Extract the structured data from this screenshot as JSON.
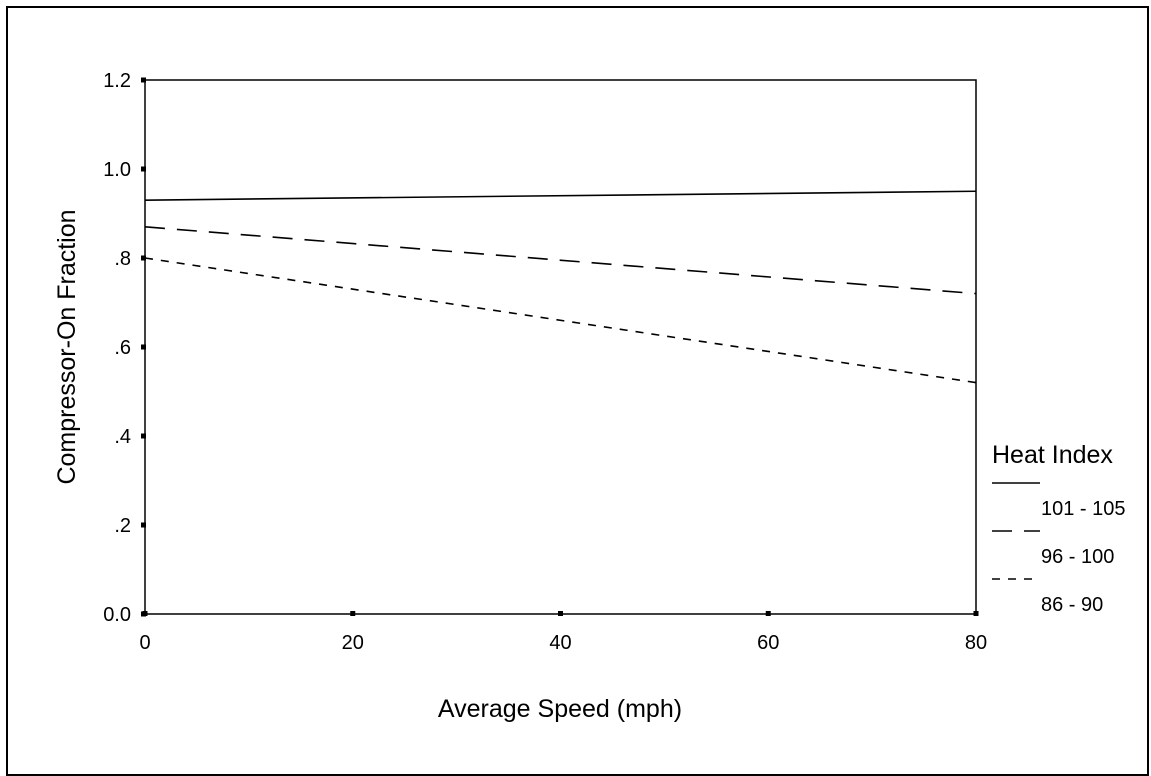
{
  "chart_data": {
    "type": "line",
    "title": "",
    "xlabel": "Average Speed (mph)",
    "ylabel": "Compressor-On Fraction",
    "xlim": [
      0,
      80
    ],
    "ylim": [
      0,
      1.2
    ],
    "x_ticks": [
      0,
      20,
      40,
      60,
      80
    ],
    "x_tick_labels": [
      "0",
      "20",
      "40",
      "60",
      "80"
    ],
    "y_ticks": [
      0,
      0.2,
      0.4,
      0.6,
      0.8,
      1.0,
      1.2
    ],
    "y_tick_labels": [
      "0.0",
      ".2",
      ".4",
      ".6",
      ".8",
      "1.0",
      "1.2"
    ],
    "grid": false,
    "legend": {
      "title": "Heat Index",
      "placement": "right"
    },
    "x": [
      0,
      80
    ],
    "series": [
      {
        "name": "101 - 105",
        "style": "solid",
        "values": [
          0.93,
          0.95
        ]
      },
      {
        "name": "96 - 100",
        "style": "long-dash",
        "values": [
          0.87,
          0.72
        ]
      },
      {
        "name": "86 - 90",
        "style": "short-dash",
        "values": [
          0.8,
          0.52
        ]
      }
    ]
  }
}
